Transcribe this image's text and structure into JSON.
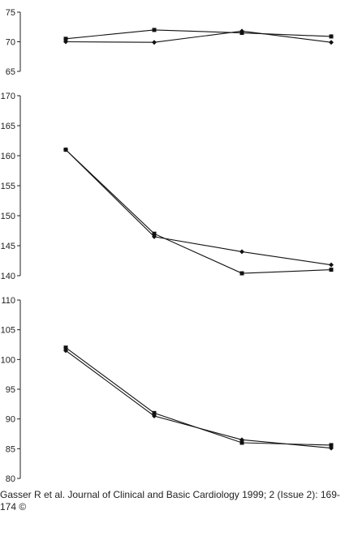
{
  "chart_data": [
    {
      "type": "line",
      "x": [
        1,
        2,
        3,
        4
      ],
      "ylim": [
        65,
        75
      ],
      "yticks": [
        65,
        70,
        75
      ],
      "series": [
        {
          "marker": "square",
          "values": [
            70.5,
            72.0,
            71.5,
            70.9
          ]
        },
        {
          "marker": "diamond",
          "values": [
            70.0,
            69.9,
            71.8,
            69.9
          ]
        }
      ]
    },
    {
      "type": "line",
      "x": [
        1,
        2,
        3,
        4
      ],
      "ylim": [
        140,
        170
      ],
      "yticks": [
        140,
        145,
        150,
        155,
        160,
        165,
        170
      ],
      "series": [
        {
          "marker": "square",
          "values": [
            161.0,
            147.0,
            140.4,
            141.0
          ]
        },
        {
          "marker": "diamond",
          "values": [
            161.0,
            146.5,
            144.0,
            141.8
          ]
        }
      ]
    },
    {
      "type": "line",
      "x": [
        1,
        2,
        3,
        4
      ],
      "ylim": [
        80,
        110
      ],
      "yticks": [
        80,
        85,
        90,
        95,
        100,
        105,
        110
      ],
      "series": [
        {
          "marker": "square",
          "values": [
            102.0,
            91.0,
            86.0,
            85.6
          ]
        },
        {
          "marker": "diamond",
          "values": [
            101.5,
            90.5,
            86.5,
            85.1
          ]
        }
      ]
    }
  ],
  "caption": {
    "text": "Gasser R et al. Journal of Clinical and Basic Cardiology 1999; 2 (Issue 2): 169-174 ©"
  }
}
